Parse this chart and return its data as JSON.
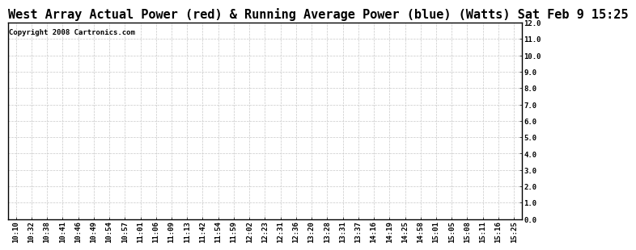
{
  "title": "West Array Actual Power (red) & Running Average Power (blue) (Watts) Sat Feb 9 15:25",
  "copyright_text": "Copyright 2008 Cartronics.com",
  "x_labels": [
    "10:10",
    "10:32",
    "10:38",
    "10:41",
    "10:46",
    "10:49",
    "10:54",
    "10:57",
    "11:01",
    "11:06",
    "11:09",
    "11:13",
    "11:42",
    "11:54",
    "11:59",
    "12:02",
    "12:23",
    "12:31",
    "12:36",
    "13:20",
    "13:28",
    "13:31",
    "13:37",
    "14:16",
    "14:19",
    "14:25",
    "14:58",
    "15:01",
    "15:05",
    "15:08",
    "15:11",
    "15:16",
    "15:25"
  ],
  "ylim": [
    0.0,
    12.0
  ],
  "yticks": [
    0.0,
    1.0,
    2.0,
    3.0,
    4.0,
    5.0,
    6.0,
    7.0,
    8.0,
    9.0,
    10.0,
    11.0,
    12.0
  ],
  "background_color": "#ffffff",
  "grid_color": "#c8c8c8",
  "title_fontsize": 11,
  "tick_fontsize": 6.5,
  "copyright_fontsize": 6.5,
  "border_color": "#000000"
}
